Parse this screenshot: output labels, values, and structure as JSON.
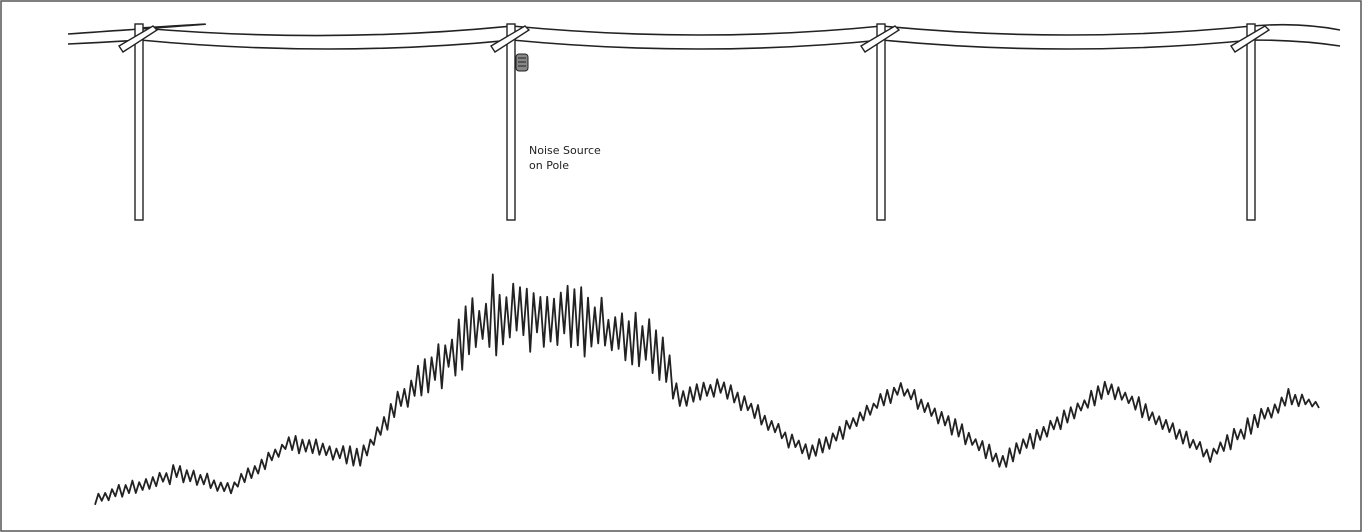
{
  "annotation": {
    "lines": [
      "Noise Source",
      "on Pole"
    ]
  }
}
